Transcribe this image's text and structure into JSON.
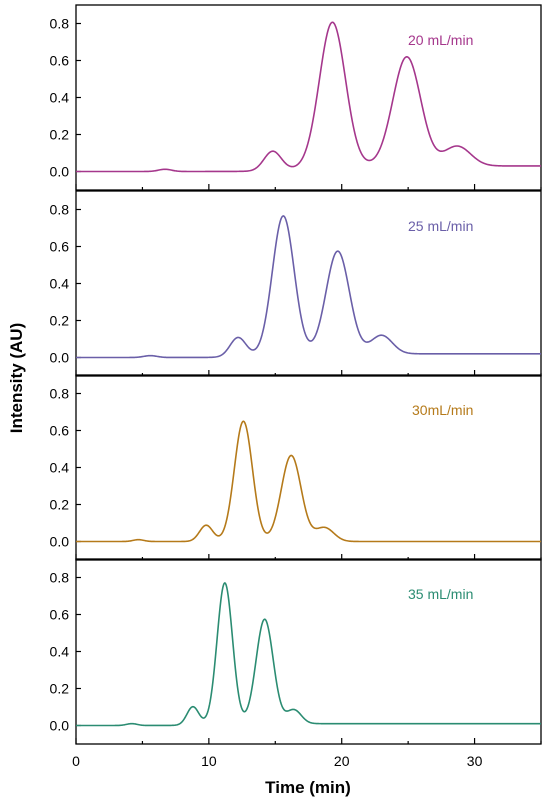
{
  "chart_data": {
    "type": "line",
    "xlabel": "Time (min)",
    "ylabel": "Intensity (AU)",
    "xlim": [
      0,
      35
    ],
    "ylim": [
      -0.1,
      0.9
    ],
    "x_ticks": [
      0,
      10,
      20,
      30
    ],
    "y_ticks": [
      0.0,
      0.2,
      0.4,
      0.6,
      0.8
    ],
    "grid": false,
    "panels": [
      {
        "label": "20 mL/min",
        "color": "#a5378c",
        "baseline_end": 0.03,
        "peaks": [
          {
            "center": 6.7,
            "height": 0.012,
            "width": 0.5
          },
          {
            "center": 14.8,
            "height": 0.105,
            "width": 0.65
          },
          {
            "center": 19.3,
            "height": 0.78,
            "width": 0.98
          },
          {
            "center": 24.9,
            "height": 0.59,
            "width": 1.05
          },
          {
            "center": 28.7,
            "height": 0.107,
            "width": 1.0
          }
        ]
      },
      {
        "label": "25 mL/min",
        "color": "#6a5fa8",
        "baseline_end": 0.02,
        "peaks": [
          {
            "center": 5.6,
            "height": 0.01,
            "width": 0.5
          },
          {
            "center": 12.2,
            "height": 0.105,
            "width": 0.6
          },
          {
            "center": 15.6,
            "height": 0.75,
            "width": 0.82
          },
          {
            "center": 19.7,
            "height": 0.555,
            "width": 0.88
          },
          {
            "center": 23.0,
            "height": 0.1,
            "width": 0.8
          }
        ]
      },
      {
        "label": "30mL/min",
        "color": "#b57a1a",
        "baseline_end": 0.0,
        "peaks": [
          {
            "center": 4.7,
            "height": 0.01,
            "width": 0.4
          },
          {
            "center": 9.8,
            "height": 0.088,
            "width": 0.5
          },
          {
            "center": 12.6,
            "height": 0.65,
            "width": 0.68
          },
          {
            "center": 16.2,
            "height": 0.465,
            "width": 0.75
          },
          {
            "center": 18.7,
            "height": 0.075,
            "width": 0.7
          }
        ]
      },
      {
        "label": "35 mL/min",
        "color": "#2b8c72",
        "baseline_end": 0.01,
        "peaks": [
          {
            "center": 4.2,
            "height": 0.01,
            "width": 0.4
          },
          {
            "center": 8.8,
            "height": 0.1,
            "width": 0.45
          },
          {
            "center": 11.2,
            "height": 0.765,
            "width": 0.58
          },
          {
            "center": 14.2,
            "height": 0.565,
            "width": 0.65
          },
          {
            "center": 16.4,
            "height": 0.075,
            "width": 0.55
          }
        ]
      }
    ]
  }
}
